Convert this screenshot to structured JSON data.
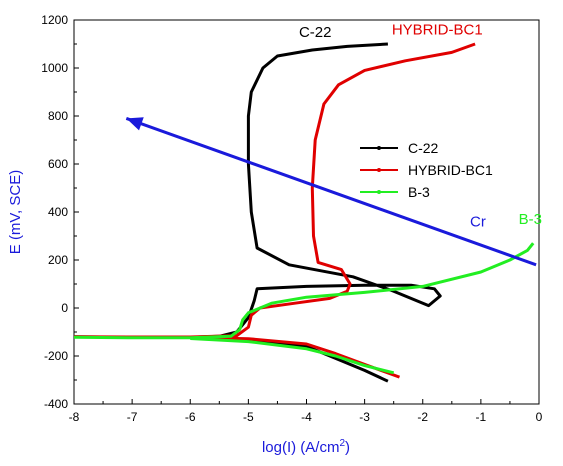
{
  "chart_data": {
    "type": "line",
    "xlabel": "log(I) (A/cm",
    "xlabel_sup": "2",
    "xlabel_close": ")",
    "ylabel": "E (mV, SCE)",
    "xlim": [
      -8,
      0
    ],
    "ylim": [
      -400,
      1200
    ],
    "x_ticks": [
      "-8",
      "-7",
      "-6",
      "-5",
      "-4",
      "-3",
      "-2",
      "-1",
      "0"
    ],
    "y_ticks": [
      "-400",
      "-200",
      "0",
      "200",
      "400",
      "600",
      "800",
      "1000",
      "1200"
    ],
    "grid": false,
    "legend_position": "center-right",
    "colors": {
      "C-22": "#000000",
      "HYBRID-BC1": "#e00000",
      "B-3": "#22ee22",
      "Cr": "#1a1adb"
    },
    "series": [
      {
        "name": "C-22",
        "color": "#000000",
        "points": [
          [
            -8.0,
            -120
          ],
          [
            -7.0,
            -122
          ],
          [
            -6.0,
            -122
          ],
          [
            -5.5,
            -118
          ],
          [
            -5.2,
            -100
          ],
          [
            -5.0,
            -40
          ],
          [
            -4.9,
            30
          ],
          [
            -4.85,
            80
          ],
          [
            -4.0,
            90
          ],
          [
            -3.0,
            95
          ],
          [
            -2.2,
            95
          ],
          [
            -1.8,
            80
          ],
          [
            -1.7,
            50
          ],
          [
            -1.9,
            10
          ],
          [
            -2.5,
            70
          ],
          [
            -3.2,
            130
          ],
          [
            -4.3,
            180
          ],
          [
            -4.85,
            250
          ],
          [
            -4.95,
            400
          ],
          [
            -5.0,
            600
          ],
          [
            -5.0,
            800
          ],
          [
            -4.95,
            900
          ],
          [
            -4.75,
            1000
          ],
          [
            -4.5,
            1050
          ],
          [
            -3.9,
            1075
          ],
          [
            -3.3,
            1090
          ],
          [
            -2.6,
            1100
          ]
        ],
        "cathodic": [
          [
            -6.0,
            -124
          ],
          [
            -5.0,
            -132
          ],
          [
            -4.0,
            -160
          ],
          [
            -3.5,
            -210
          ],
          [
            -3.0,
            -260
          ],
          [
            -2.6,
            -305
          ]
        ]
      },
      {
        "name": "HYBRID-BC1",
        "color": "#e00000",
        "points": [
          [
            -8.0,
            -120
          ],
          [
            -7.0,
            -121
          ],
          [
            -6.0,
            -121
          ],
          [
            -5.2,
            -115
          ],
          [
            -5.0,
            -80
          ],
          [
            -4.95,
            -30
          ],
          [
            -4.8,
            0
          ],
          [
            -4.2,
            20
          ],
          [
            -3.6,
            40
          ],
          [
            -3.3,
            70
          ],
          [
            -3.25,
            100
          ],
          [
            -3.4,
            160
          ],
          [
            -3.8,
            190
          ],
          [
            -3.88,
            300
          ],
          [
            -3.9,
            500
          ],
          [
            -3.85,
            700
          ],
          [
            -3.7,
            850
          ],
          [
            -3.45,
            930
          ],
          [
            -3.0,
            990
          ],
          [
            -2.3,
            1030
          ],
          [
            -1.5,
            1065
          ],
          [
            -1.1,
            1100
          ]
        ],
        "cathodic": [
          [
            -6.0,
            -123
          ],
          [
            -5.0,
            -128
          ],
          [
            -4.0,
            -150
          ],
          [
            -3.5,
            -190
          ],
          [
            -3.0,
            -235
          ],
          [
            -2.4,
            -288
          ]
        ]
      },
      {
        "name": "B-3",
        "color": "#22ee22",
        "points": [
          [
            -8.0,
            -122
          ],
          [
            -7.0,
            -124
          ],
          [
            -6.0,
            -124
          ],
          [
            -5.3,
            -118
          ],
          [
            -5.15,
            -90
          ],
          [
            -5.1,
            -50
          ],
          [
            -5.0,
            -20
          ],
          [
            -4.6,
            20
          ],
          [
            -4.0,
            45
          ],
          [
            -3.0,
            65
          ],
          [
            -2.0,
            90
          ],
          [
            -1.0,
            150
          ],
          [
            -0.5,
            200
          ],
          [
            -0.2,
            240
          ],
          [
            -0.1,
            270
          ]
        ],
        "cathodic": [
          [
            -6.0,
            -127
          ],
          [
            -5.0,
            -140
          ],
          [
            -4.0,
            -170
          ],
          [
            -3.5,
            -200
          ],
          [
            -3.0,
            -240
          ],
          [
            -2.5,
            -270
          ]
        ]
      }
    ],
    "annotations": [
      {
        "text": "C-22",
        "x": -3.85,
        "y": 1130,
        "color": "#000000"
      },
      {
        "text": "HYBRID-BC1",
        "x": -1.75,
        "y": 1140,
        "color": "#e00000"
      },
      {
        "text": "B-3",
        "x": -0.15,
        "y": 350,
        "color": "#22ee22"
      },
      {
        "text": "Cr",
        "x": -1.05,
        "y": 340,
        "color": "#1a1adb"
      }
    ],
    "arrow": {
      "name": "Cr",
      "color": "#1a1adb",
      "from": [
        -0.05,
        180
      ],
      "to": [
        -7.1,
        790
      ]
    }
  }
}
